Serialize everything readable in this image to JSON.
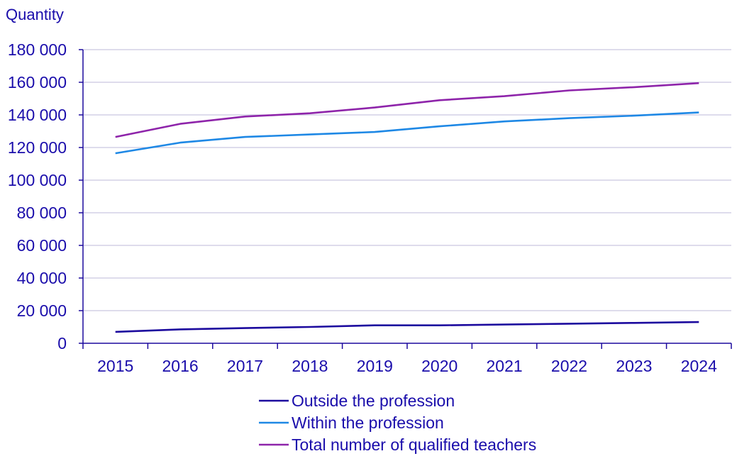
{
  "chart_data": {
    "type": "line",
    "title": "",
    "ylabel": "Quantity",
    "xlabel": "",
    "categories": [
      "2015",
      "2016",
      "2017",
      "2018",
      "2019",
      "2020",
      "2021",
      "2022",
      "2023",
      "2024"
    ],
    "y_ticks": [
      "0",
      "20 000",
      "40 000",
      "60 000",
      "80 000",
      "100 000",
      "120 000",
      "140 000",
      "160 000",
      "180 000"
    ],
    "ylim": [
      0,
      180000
    ],
    "grid": true,
    "legend_position": "bottom",
    "series": [
      {
        "name": "Outside the profession",
        "color": "#1c0a9e",
        "values": [
          7000,
          8500,
          9300,
          10000,
          11000,
          11000,
          11500,
          12000,
          12500,
          13000
        ]
      },
      {
        "name": "Within the profession",
        "color": "#1e88e5",
        "values": [
          116500,
          123000,
          126500,
          128000,
          129500,
          133000,
          136000,
          138000,
          139500,
          141500
        ]
      },
      {
        "name": "Total number of qualified teachers",
        "color": "#8e24aa",
        "values": [
          126500,
          134500,
          139000,
          141000,
          144500,
          149000,
          151500,
          155000,
          157000,
          159500
        ]
      }
    ]
  }
}
